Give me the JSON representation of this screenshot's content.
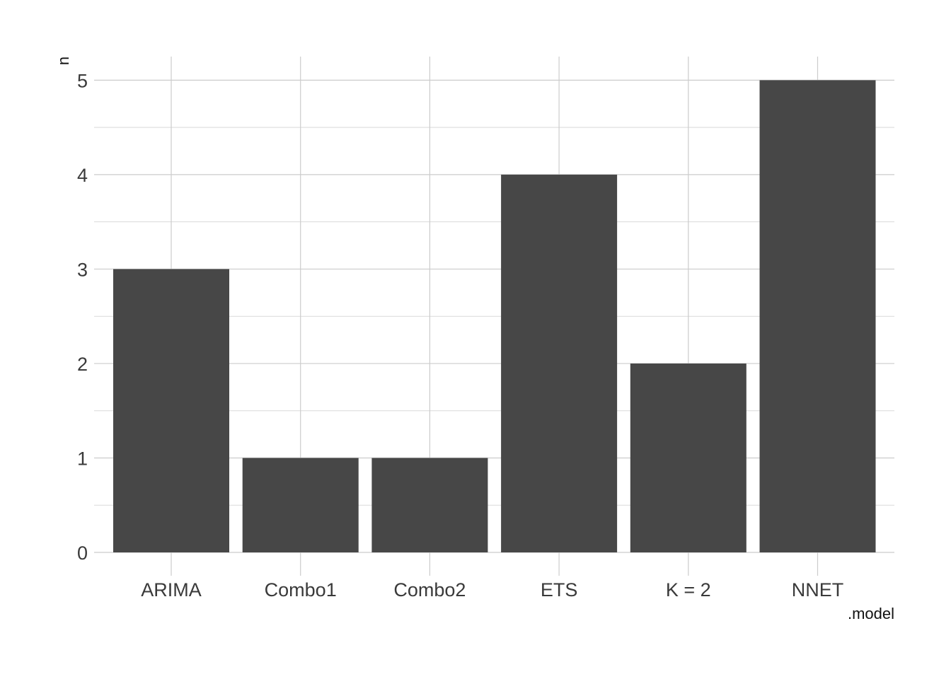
{
  "chart_data": {
    "type": "bar",
    "categories": [
      "ARIMA",
      "Combo1",
      "Combo2",
      "ETS",
      "K = 2",
      "NNET"
    ],
    "values": [
      3,
      1,
      1,
      4,
      2,
      5
    ],
    "xlabel": ".model",
    "ylabel": "n",
    "ylim": [
      0,
      5.25
    ],
    "y_ticks": [
      0,
      1,
      2,
      3,
      4,
      5
    ],
    "grid": true,
    "legend": "none",
    "colors": {
      "bar": "#474747",
      "grid_major": "#cccccc",
      "grid_minor": "#d9d9d9",
      "text": "#3a3a3a"
    }
  }
}
